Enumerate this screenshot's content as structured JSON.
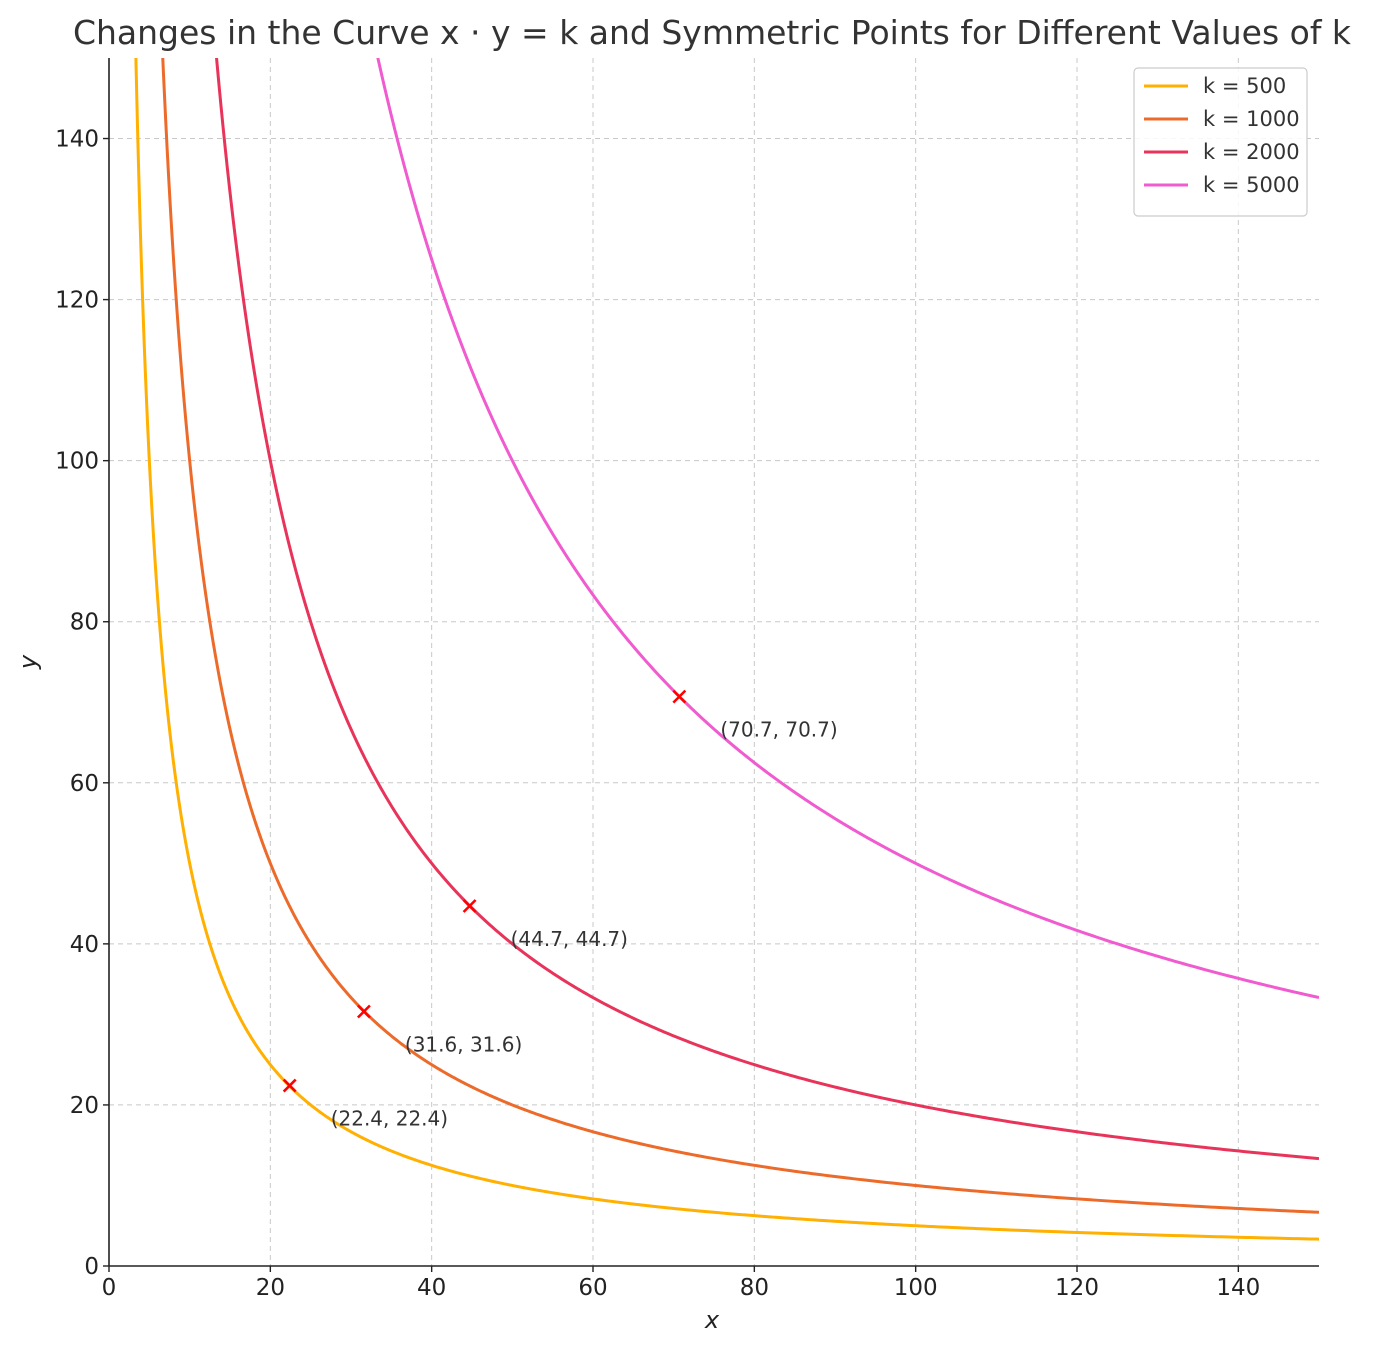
{
  "chart_data": {
    "type": "line",
    "title": "Changes in the Curve x · y = k and Symmetric Points for Different Values of k",
    "xlabel": "x",
    "ylabel": "y",
    "xlim": [
      0,
      150
    ],
    "ylim": [
      0,
      150
    ],
    "xticks": [
      0,
      20,
      40,
      60,
      80,
      100,
      120,
      140
    ],
    "yticks": [
      0,
      20,
      40,
      60,
      80,
      100,
      120,
      140
    ],
    "grid": true,
    "legend_position": "top-right",
    "series": [
      {
        "name": "k = 500",
        "k": 500,
        "color": "#FFB000"
      },
      {
        "name": "k = 1000",
        "k": 1000,
        "color": "#ED6B2A"
      },
      {
        "name": "k = 2000",
        "k": 2000,
        "color": "#E8345A"
      },
      {
        "name": "k = 5000",
        "k": 5000,
        "color": "#F05BD0"
      }
    ],
    "symmetric_points": [
      {
        "x": 22.4,
        "y": 22.4,
        "label": "(22.4, 22.4)"
      },
      {
        "x": 31.6,
        "y": 31.6,
        "label": "(31.6, 31.6)"
      },
      {
        "x": 44.7,
        "y": 44.7,
        "label": "(44.7, 44.7)"
      },
      {
        "x": 70.7,
        "y": 70.7,
        "label": "(70.7, 70.7)"
      }
    ],
    "marker_color": "#FF0000"
  }
}
